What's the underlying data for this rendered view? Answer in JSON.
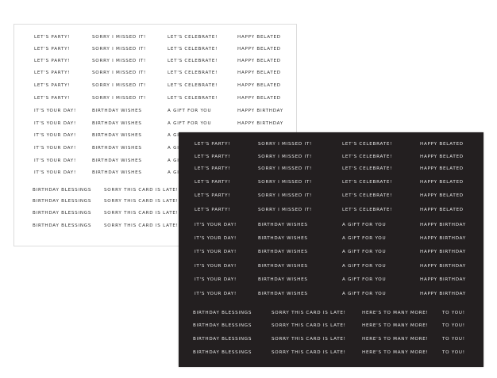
{
  "white_sheet": {
    "background": "#ffffff",
    "text_color": "#333333",
    "rows": [
      [
        "LET'S PARTY!",
        "SORRY I MISSED IT!",
        "LET'S CELEBRATE!",
        "HAPPY BELATED"
      ],
      [
        "LET'S PARTY!",
        "SORRY I MISSED IT!",
        "LET'S CELEBRATE!",
        "HAPPY BELATED"
      ],
      [
        "LET'S PARTY!",
        "SORRY I MISSED IT!",
        "LET'S CELEBRATE!",
        "HAPPY BELATED"
      ],
      [
        "LET'S PARTY!",
        "SORRY I MISSED IT!",
        "LET'S CELEBRATE!",
        "HAPPY BELATED"
      ],
      [
        "LET'S PARTY!",
        "SORRY I MISSED IT!",
        "LET'S CELEBRATE!",
        "HAPPY BELATED"
      ],
      [
        "LET'S PARTY!",
        "SORRY I MISSED IT!",
        "LET'S CELEBRATE!",
        "HAPPY BELATED"
      ],
      [
        "IT'S YOUR DAY!",
        "BIRTHDAY WISHES",
        "A GIFT FOR YOU",
        "HAPPY BIRTHDAY"
      ],
      [
        "IT'S YOUR DAY!",
        "BIRTHDAY WISHES",
        "A GIFT FOR YOU",
        "HAPPY BIRTHDAY"
      ],
      [
        "IT'S YOUR DAY!",
        "BIRTHDAY WISHES",
        "A GIFT FOR YOU"
      ],
      [
        "IT'S YOUR DAY!",
        "BIRTHDAY WISHES",
        "A GIFT FOR YOU"
      ],
      [
        "IT'S YOUR DAY!",
        "BIRTHDAY WISHES",
        "A GIFT FOR YOU"
      ],
      [
        "IT'S YOUR DAY!",
        "BIRTHDAY WISHES",
        "A GIFT FOR YOU"
      ],
      [
        "BIRTHDAY BLESSINGS",
        "SORRY THIS CARD IS LATE!"
      ],
      [
        "BIRTHDAY BLESSINGS",
        "SORRY THIS CARD IS LATE!"
      ],
      [
        "BIRTHDAY BLESSINGS",
        "SORRY THIS CARD IS LATE!"
      ],
      [
        "BIRTHDAY BLESSINGS",
        "SORRY THIS CARD IS LATE!"
      ]
    ]
  },
  "black_sheet": {
    "background": "#231f20",
    "text_color": "#e8e8e8",
    "rows": [
      [
        "LET'S PARTY!",
        "SORRY I MISSED IT!",
        "LET'S CELEBRATE!",
        "HAPPY BELATED"
      ],
      [
        "LET'S PARTY!",
        "SORRY I MISSED IT!",
        "LET'S CELEBRATE!",
        "HAPPY BELATED"
      ],
      [
        "LET'S PARTY!",
        "SORRY I MISSED IT!",
        "LET'S CELEBRATE!",
        "HAPPY BELATED"
      ],
      [
        "LET'S PARTY!",
        "SORRY I MISSED IT!",
        "LET'S CELEBRATE!",
        "HAPPY BELATED"
      ],
      [
        "LET'S PARTY!",
        "SORRY I MISSED IT!",
        "LET'S CELEBRATE!",
        "HAPPY BELATED"
      ],
      [
        "LET'S PARTY!",
        "SORRY I MISSED IT!",
        "LET'S CELEBRATE!",
        "HAPPY BELATED"
      ],
      [
        "IT'S YOUR DAY!",
        "BIRTHDAY WISHES",
        "A GIFT FOR YOU",
        "HAPPY BIRTHDAY"
      ],
      [
        "IT'S YOUR DAY!",
        "BIRTHDAY WISHES",
        "A GIFT FOR YOU",
        "HAPPY BIRTHDAY"
      ],
      [
        "IT'S YOUR DAY!",
        "BIRTHDAY WISHES",
        "A GIFT FOR YOU",
        "HAPPY BIRTHDAY"
      ],
      [
        "IT'S YOUR DAY!",
        "BIRTHDAY WISHES",
        "A GIFT FOR YOU",
        "HAPPY BIRTHDAY"
      ],
      [
        "IT'S YOUR DAY!",
        "BIRTHDAY WISHES",
        "A GIFT FOR YOU",
        "HAPPY BIRTHDAY"
      ],
      [
        "IT'S YOUR DAY!",
        "BIRTHDAY WISHES",
        "A GIFT FOR YOU",
        "HAPPY BIRTHDAY"
      ],
      [
        "BIRTHDAY BLESSINGS",
        "SORRY THIS CARD IS LATE!",
        "HERE'S TO MANY MORE!",
        "TO YOU!"
      ],
      [
        "BIRTHDAY BLESSINGS",
        "SORRY THIS CARD IS LATE!",
        "HERE'S TO MANY MORE!",
        "TO YOU!"
      ],
      [
        "BIRTHDAY BLESSINGS",
        "SORRY THIS CARD IS LATE!",
        "HERE'S TO MANY MORE!",
        "TO YOU!"
      ],
      [
        "BIRTHDAY BLESSINGS",
        "SORRY THIS CARD IS LATE!",
        "HERE'S TO MANY MORE!",
        "TO YOU!"
      ]
    ]
  }
}
